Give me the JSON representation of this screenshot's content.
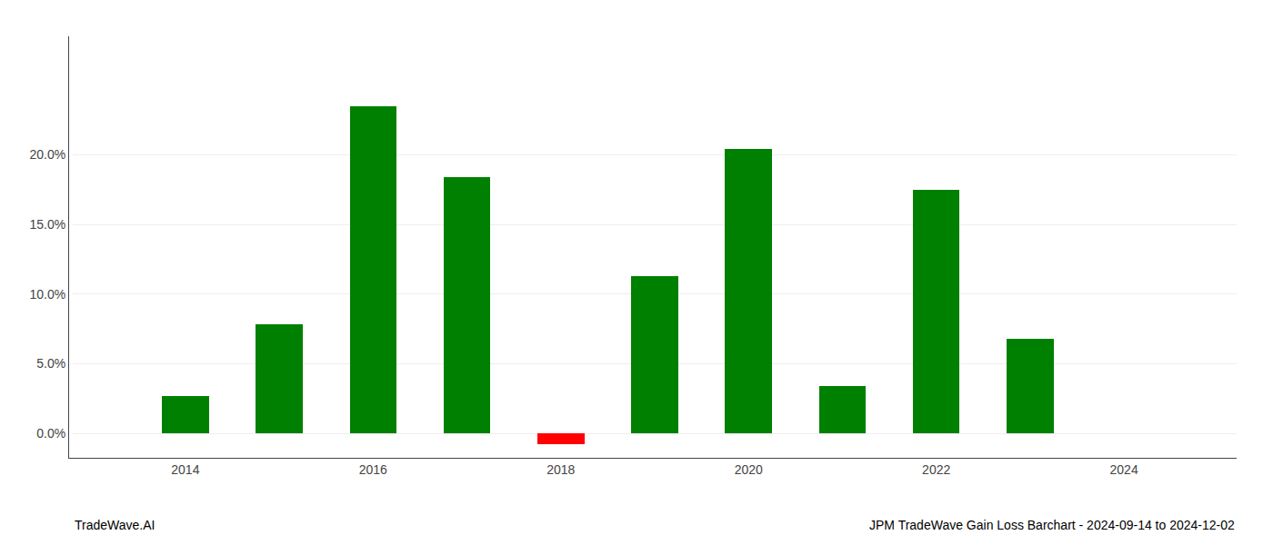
{
  "chart_data": {
    "type": "bar",
    "x": [
      2014,
      2015,
      2016,
      2017,
      2018,
      2019,
      2020,
      2021,
      2022,
      2023
    ],
    "values": [
      0.027,
      0.078,
      0.235,
      0.184,
      -0.008,
      0.113,
      0.204,
      0.034,
      0.175,
      0.068
    ],
    "colors": [
      "#008000",
      "#008000",
      "#008000",
      "#008000",
      "#ff0000",
      "#008000",
      "#008000",
      "#008000",
      "#008000",
      "#008000"
    ],
    "annotations": [
      "TradeWave.AI",
      "JPM TradeWave Gain Loss Barchart - 2024-09-14 to 2024-12-02"
    ],
    "xlim": [
      2012.8,
      2025.2
    ],
    "xticks": [
      2014,
      2016,
      2018,
      2020,
      2022,
      2024
    ],
    "ylim": [
      -0.015,
      0.285
    ],
    "yticks": [
      {
        "value": 0.0,
        "label": "0.0%"
      },
      {
        "value": 0.05,
        "label": "5.0%"
      },
      {
        "value": 0.1,
        "label": "10.0%"
      },
      {
        "value": 0.15,
        "label": "15.0%"
      },
      {
        "value": 0.2,
        "label": "20.0%"
      }
    ],
    "grid": true
  }
}
